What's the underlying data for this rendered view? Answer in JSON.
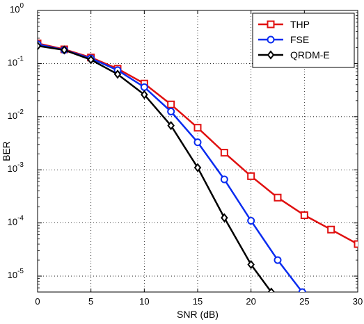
{
  "chart_data": {
    "type": "line",
    "title": "",
    "xlabel": "SNR (dB)",
    "ylabel": "BER",
    "xlim": [
      0,
      30
    ],
    "ylim_log10": [
      -5.3,
      0
    ],
    "y_scale": "log",
    "grid": true,
    "legend_position": "top-right",
    "x_ticks": [
      "0",
      "5",
      "10",
      "15",
      "20",
      "25",
      "30"
    ],
    "y_ticks": [
      {
        "base": "10",
        "exp": "0"
      },
      {
        "base": "10",
        "exp": "-1"
      },
      {
        "base": "10",
        "exp": "-2"
      },
      {
        "base": "10",
        "exp": "-3"
      },
      {
        "base": "10",
        "exp": "-4"
      },
      {
        "base": "10",
        "exp": "-5"
      }
    ],
    "series": [
      {
        "name": "THP",
        "color": "#e01010",
        "marker": "square",
        "points": [
          [
            0,
            0.24
          ],
          [
            2.5,
            0.185
          ],
          [
            5,
            0.13
          ],
          [
            7.5,
            0.08
          ],
          [
            10,
            0.042
          ],
          [
            12.5,
            0.017
          ],
          [
            15,
            0.0062
          ],
          [
            17.5,
            0.0021
          ],
          [
            20,
            0.00076
          ],
          [
            22.5,
            0.0003
          ],
          [
            25,
            0.00014
          ],
          [
            27.5,
            7.5e-05
          ],
          [
            30,
            4e-05
          ]
        ]
      },
      {
        "name": "FSE",
        "color": "#0a2cf0",
        "marker": "circle",
        "points": [
          [
            0,
            0.23
          ],
          [
            2.5,
            0.18
          ],
          [
            5,
            0.125
          ],
          [
            7.5,
            0.075
          ],
          [
            10,
            0.036
          ],
          [
            12.5,
            0.0125
          ],
          [
            15,
            0.0033
          ],
          [
            17.5,
            0.00066
          ],
          [
            20,
            0.00011
          ],
          [
            22.5,
            2e-05
          ],
          [
            24.8,
            5e-06
          ]
        ]
      },
      {
        "name": "QRDM-E",
        "color": "#000000",
        "marker": "diamond",
        "points": [
          [
            0,
            0.215
          ],
          [
            2.5,
            0.18
          ],
          [
            5,
            0.118
          ],
          [
            7.5,
            0.063
          ],
          [
            10,
            0.026
          ],
          [
            12.5,
            0.0068
          ],
          [
            15,
            0.0011
          ],
          [
            17.5,
            0.000125
          ],
          [
            20,
            1.65e-05
          ],
          [
            21.9,
            5e-06
          ]
        ]
      }
    ]
  }
}
